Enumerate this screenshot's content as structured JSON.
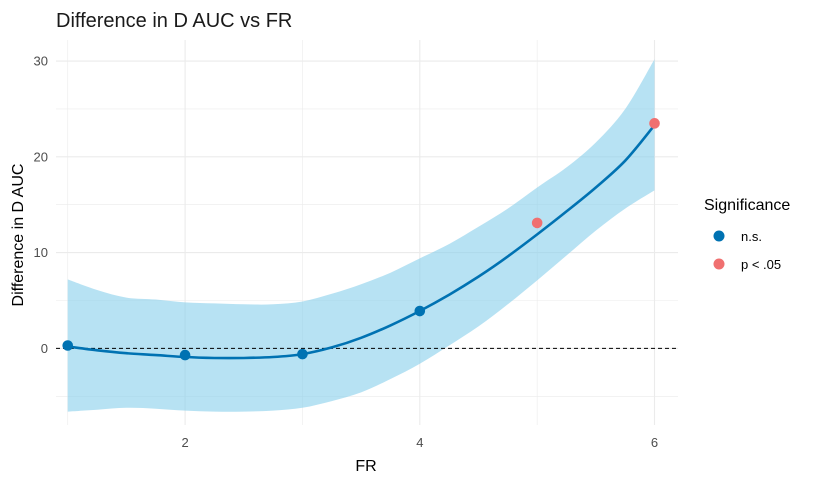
{
  "colors": {
    "ns": "#0072b2",
    "sig": "#f07070",
    "ribbon": "#87ceeb",
    "grid": "#ebebeb",
    "zero_line": "#000000"
  },
  "legend": {
    "title": "Significance",
    "items": [
      {
        "label": "n.s.",
        "color_key": "ns"
      },
      {
        "label": "p < .05",
        "color_key": "sig"
      }
    ]
  },
  "chart_data": {
    "type": "line",
    "title": "Difference in D AUC vs FR",
    "xlabel": "FR",
    "ylabel": "Difference in D AUC",
    "xlim": [
      0.9,
      6.2
    ],
    "ylim": [
      -8.0,
      32.2
    ],
    "x_ticks": [
      2,
      4,
      6
    ],
    "y_ticks": [
      0,
      10,
      20,
      30
    ],
    "grid": true,
    "legend_position": "right",
    "reference_line": {
      "y": 0,
      "style": "dashed"
    },
    "points": [
      {
        "x": 1,
        "y": 0.3,
        "group": "n.s."
      },
      {
        "x": 2,
        "y": -0.7,
        "group": "n.s."
      },
      {
        "x": 3,
        "y": -0.6,
        "group": "n.s."
      },
      {
        "x": 4,
        "y": 3.9,
        "group": "n.s."
      },
      {
        "x": 5,
        "y": 13.1,
        "group": "p < .05"
      },
      {
        "x": 6,
        "y": 23.5,
        "group": "p < .05"
      }
    ],
    "smooth": {
      "x": [
        1.0,
        1.25,
        1.5,
        1.75,
        2.0,
        2.25,
        2.5,
        2.75,
        3.0,
        3.25,
        3.5,
        3.75,
        4.0,
        4.25,
        4.5,
        4.75,
        5.0,
        5.25,
        5.5,
        5.75,
        6.0
      ],
      "y": [
        0.2,
        -0.2,
        -0.5,
        -0.7,
        -0.9,
        -1.0,
        -1.0,
        -0.9,
        -0.6,
        0.1,
        1.1,
        2.4,
        3.9,
        5.6,
        7.5,
        9.6,
        11.9,
        14.3,
        16.8,
        19.6,
        23.3
      ],
      "lower": [
        -6.6,
        -6.4,
        -6.2,
        -6.3,
        -6.5,
        -6.6,
        -6.6,
        -6.5,
        -6.2,
        -5.5,
        -4.6,
        -3.2,
        -1.6,
        0.3,
        2.3,
        4.6,
        7.1,
        9.7,
        12.3,
        14.6,
        16.5
      ],
      "upper": [
        7.2,
        6.1,
        5.3,
        5.1,
        4.8,
        4.7,
        4.6,
        4.6,
        4.9,
        5.7,
        6.7,
        7.9,
        9.4,
        10.9,
        12.7,
        14.6,
        16.8,
        18.9,
        21.5,
        25.0,
        30.2
      ]
    }
  }
}
